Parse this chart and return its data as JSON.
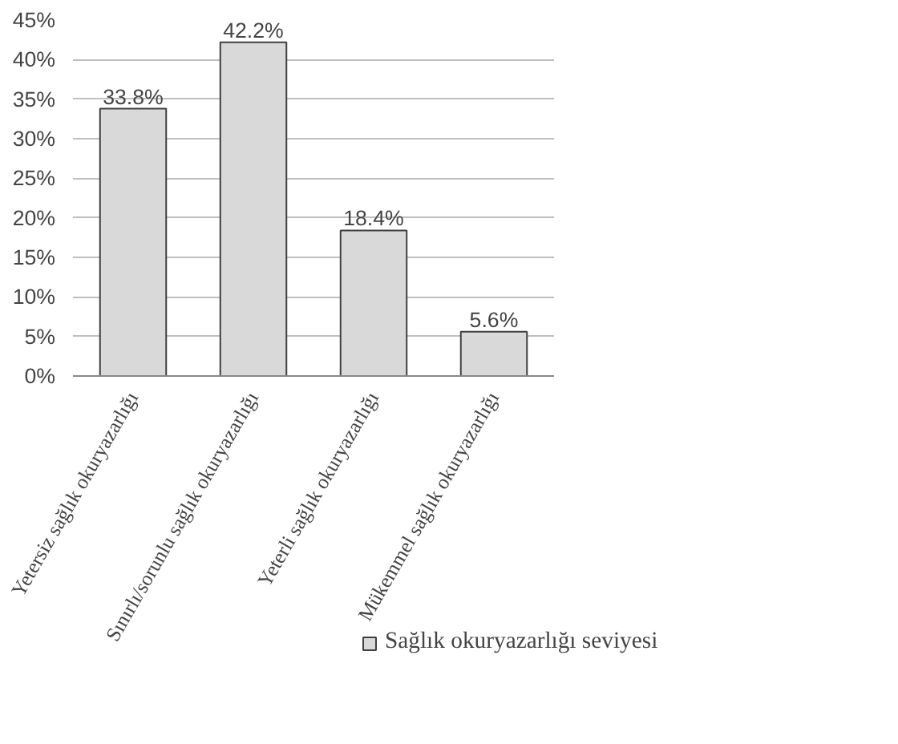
{
  "chart_data": {
    "type": "bar",
    "categories": [
      "Yetersiz sağlık okuryazarlığı",
      "Sınırlı/sorunlu sağlık okuryazarlığı",
      "Yeterli sağlık okuryazarlığı",
      "Mükemmel sağlık okuryazarlığı"
    ],
    "series": [
      {
        "name": "Sağlık okuryazarlığı seviyesi",
        "color": "#d9d9d9",
        "values": [
          33.8,
          42.2,
          18.4,
          5.6
        ],
        "value_labels": [
          "33.8%",
          "42.2%",
          "18.4%",
          "5.6%"
        ]
      }
    ],
    "ylim": [
      0,
      45
    ],
    "yticks": [
      {
        "value": 0,
        "label": "0%"
      },
      {
        "value": 5,
        "label": "5%"
      },
      {
        "value": 10,
        "label": "10%"
      },
      {
        "value": 15,
        "label": "15%"
      },
      {
        "value": 20,
        "label": "20%"
      },
      {
        "value": 25,
        "label": "25%"
      },
      {
        "value": 30,
        "label": "30%"
      },
      {
        "value": 35,
        "label": "35%"
      },
      {
        "value": 40,
        "label": "40%"
      },
      {
        "value": 45,
        "label": "45%"
      }
    ],
    "grid": "y",
    "legend": "bottom"
  }
}
